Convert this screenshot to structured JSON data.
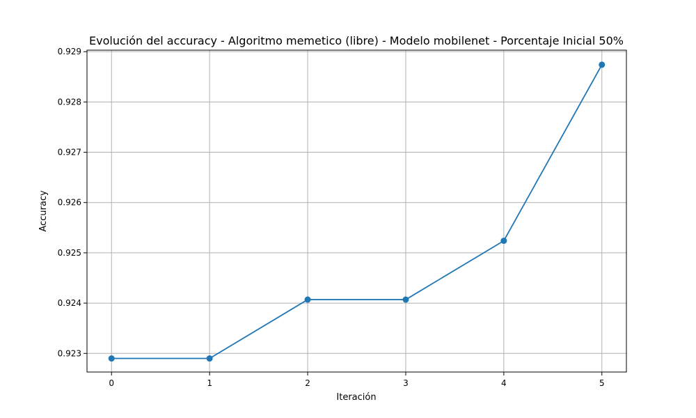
{
  "chart_data": {
    "type": "line",
    "title": "Evolución del accuracy - Algoritmo memetico (libre) - Modelo mobilenet - Porcentaje Inicial 50%",
    "xlabel": "Iteración",
    "ylabel": "Accuracy",
    "x": [
      0,
      1,
      2,
      3,
      4,
      5
    ],
    "x_ticks": [
      "0",
      "1",
      "2",
      "3",
      "4",
      "5"
    ],
    "y_ticks": [
      "0.923",
      "0.924",
      "0.925",
      "0.926",
      "0.927",
      "0.928",
      "0.929"
    ],
    "xlim": [
      -0.25,
      5.25
    ],
    "ylim": [
      0.92263,
      0.92903
    ],
    "grid": true,
    "series": [
      {
        "values": [
          0.9229,
          0.9229,
          0.92407,
          0.92407,
          0.92524,
          0.92874
        ],
        "color": "#1f77b4",
        "marker": "circle"
      }
    ]
  }
}
